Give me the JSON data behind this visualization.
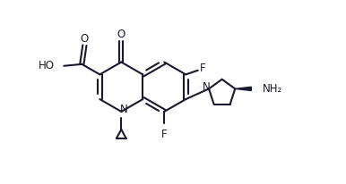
{
  "bg_color": "#ffffff",
  "line_color": "#1a1a2e",
  "line_width": 1.5,
  "font_size": 8.5,
  "fig_width": 3.86,
  "fig_height": 2.06,
  "dpi": 100,
  "xlim": [
    0,
    10
  ],
  "ylim": [
    0,
    5.3
  ]
}
